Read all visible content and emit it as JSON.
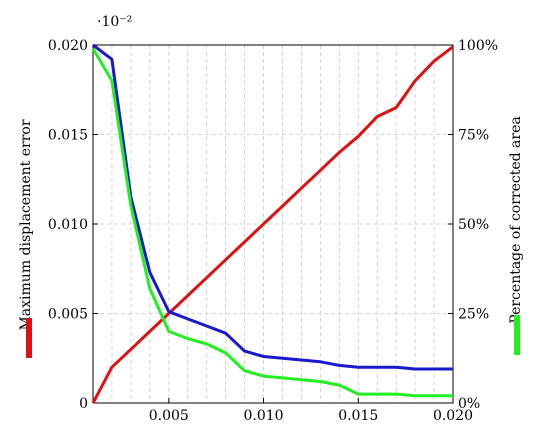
{
  "chart_data": {
    "type": "line",
    "x_scale_note": "·10⁻²",
    "xlim": [
      0.001,
      0.02
    ],
    "x_ticks": [
      "0.005",
      "0.010",
      "0.015",
      "0.020"
    ],
    "left_axis": {
      "label": "Maximum displacement error",
      "ylim": [
        0,
        0.02
      ],
      "ticks": [
        "0",
        "0.005",
        "0.010",
        "0.015",
        "0.020"
      ],
      "color": "#dd1111"
    },
    "right_axis": {
      "label": "Percentage of corrected area",
      "ylim": [
        0,
        100
      ],
      "ticks": [
        "0%",
        "25%",
        "50%",
        "75%",
        "100%"
      ],
      "color": "#22ee22"
    },
    "grid": true,
    "series": [
      {
        "axis": "left",
        "color": "#dd1111",
        "x": [
          0.001,
          0.002,
          0.003,
          0.004,
          0.005,
          0.006,
          0.007,
          0.008,
          0.009,
          0.01,
          0.011,
          0.012,
          0.013,
          0.014,
          0.015,
          0.016,
          0.017,
          0.018,
          0.019,
          0.02
        ],
        "y": [
          0.0,
          0.002,
          0.003,
          0.004,
          0.005,
          0.006,
          0.007,
          0.008,
          0.009,
          0.01,
          0.011,
          0.012,
          0.013,
          0.014,
          0.0149,
          0.016,
          0.0165,
          0.018,
          0.0191,
          0.0199
        ]
      },
      {
        "axis": "left",
        "color": "#1a1acc",
        "x": [
          0.001,
          0.002,
          0.003,
          0.004,
          0.005,
          0.006,
          0.007,
          0.008,
          0.009,
          0.01,
          0.011,
          0.012,
          0.013,
          0.014,
          0.015,
          0.016,
          0.017,
          0.018,
          0.019,
          0.02
        ],
        "y": [
          0.02,
          0.0192,
          0.0115,
          0.0073,
          0.0051,
          0.0047,
          0.0043,
          0.0039,
          0.0029,
          0.0026,
          0.0025,
          0.0024,
          0.0023,
          0.0021,
          0.002,
          0.002,
          0.002,
          0.0019,
          0.0019,
          0.0019
        ]
      },
      {
        "axis": "right",
        "color": "#22ee22",
        "x": [
          0.001,
          0.002,
          0.003,
          0.004,
          0.005,
          0.006,
          0.007,
          0.008,
          0.009,
          0.01,
          0.011,
          0.012,
          0.013,
          0.014,
          0.015,
          0.016,
          0.017,
          0.018,
          0.019,
          0.02
        ],
        "y": [
          99,
          90,
          55,
          32,
          20,
          18,
          16.5,
          14,
          9,
          7.5,
          7,
          6.5,
          6,
          5,
          2.5,
          2.5,
          2.5,
          2,
          2,
          2
        ]
      }
    ]
  }
}
